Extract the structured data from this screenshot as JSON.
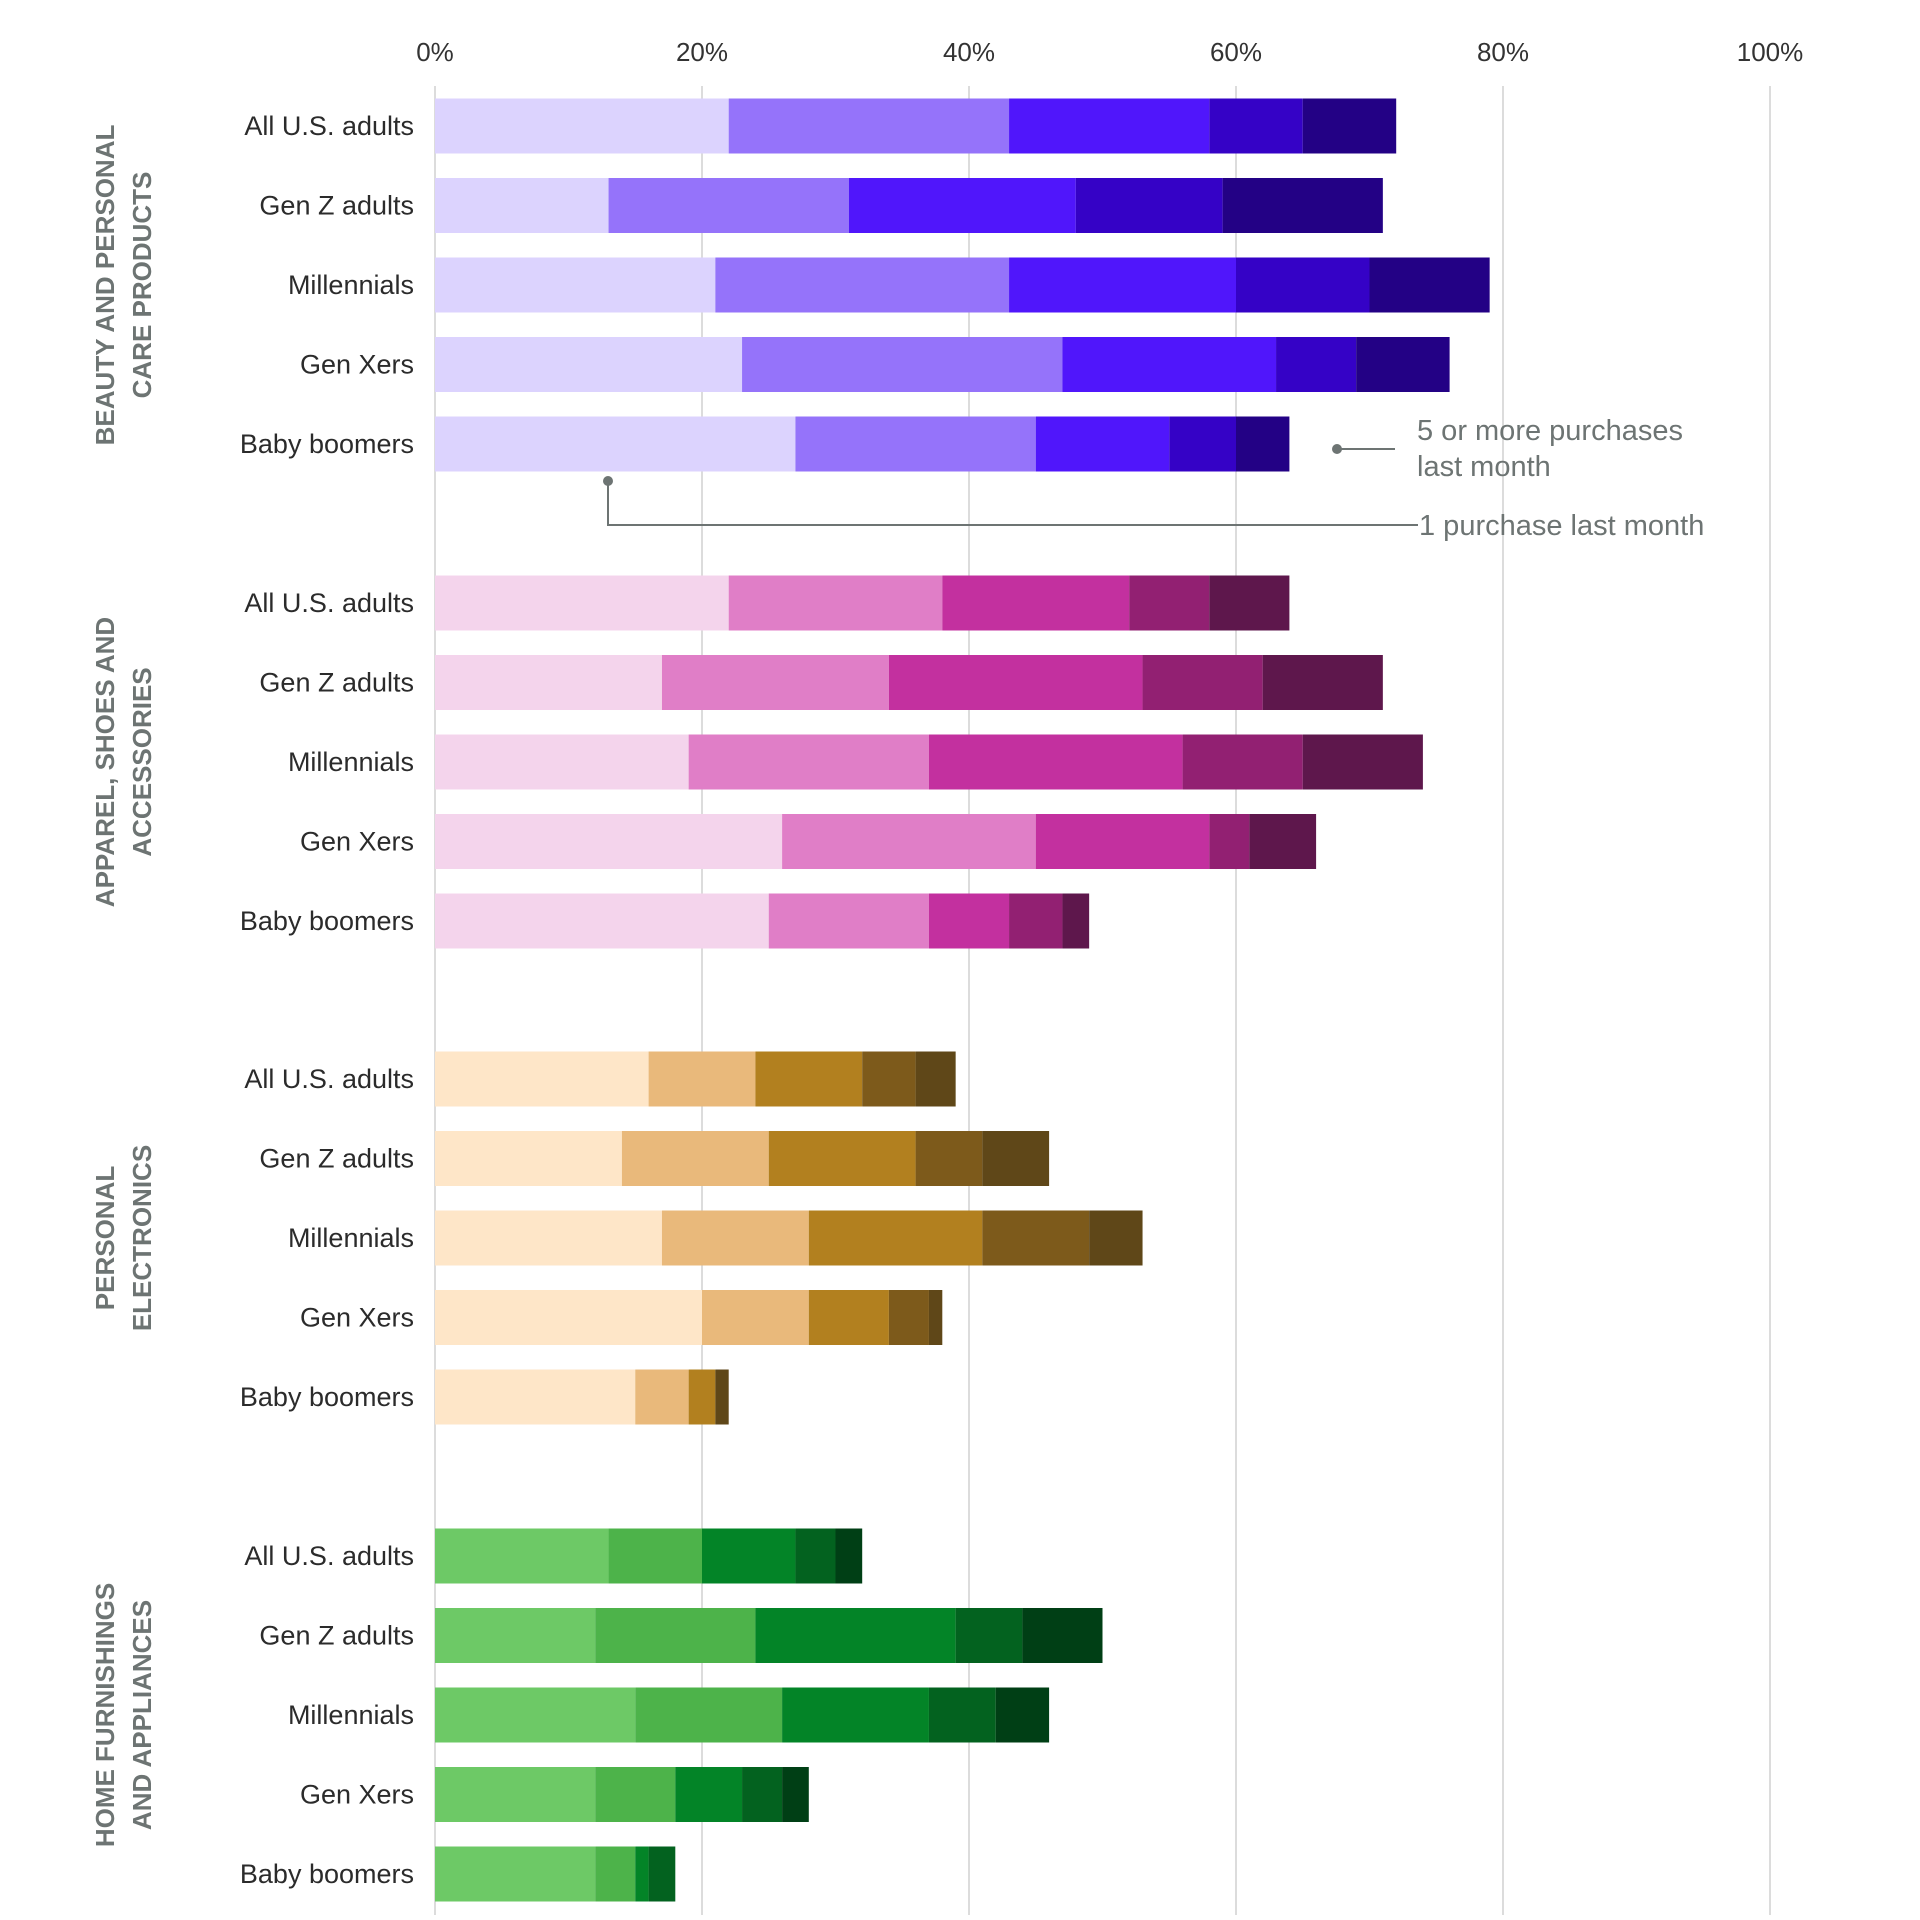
{
  "chart_data": {
    "type": "bar",
    "orientation": "horizontal",
    "stacked": true,
    "title": "",
    "xlabel": "",
    "ylabel": "",
    "xlim": [
      0,
      100
    ],
    "x_ticks": [
      "0%",
      "20%",
      "40%",
      "60%",
      "80%",
      "100%"
    ],
    "x_tick_values": [
      0,
      20,
      40,
      60,
      80,
      100
    ],
    "grid": true,
    "value_unit": "percent of respondents",
    "segment_order_note": "Segments run from 1 purchase last month (lightest) to 5 or more purchases last month (darkest)",
    "annotations": [
      {
        "text": "5 or more purchases last month",
        "lines": [
          "5 or more purchases",
          "last month"
        ],
        "points_to": "darkest segment"
      },
      {
        "text": "1 purchase last month",
        "lines": [
          "1 purchase last month"
        ],
        "points_to": "lightest segment"
      }
    ],
    "groups": [
      {
        "name": "Beauty and personal care products",
        "label_lines": [
          "BEAUTY AND PERSONAL",
          "CARE PRODUCTS"
        ],
        "colors": [
          "#dcd3fe",
          "#9573fa",
          "#5016fb",
          "#3502c6",
          "#230185"
        ],
        "categories": [
          "All U.S. adults",
          "Gen Z adults",
          "Millennials",
          "Gen Xers",
          "Baby boomers"
        ],
        "segments": [
          [
            22,
            21,
            15,
            7,
            7
          ],
          [
            13,
            18,
            17,
            11,
            12
          ],
          [
            21,
            22,
            17,
            10,
            9
          ],
          [
            23,
            24,
            16,
            6,
            7
          ],
          [
            27,
            18,
            10,
            5,
            4
          ]
        ]
      },
      {
        "name": "Apparel, shoes and accessories",
        "label_lines": [
          "APPAREL, SHOES AND",
          "ACCESSORIES"
        ],
        "colors": [
          "#f4d4ec",
          "#e07ec7",
          "#c3309f",
          "#922072",
          "#5e174c"
        ],
        "categories": [
          "All U.S. adults",
          "Gen Z adults",
          "Millennials",
          "Gen Xers",
          "Baby boomers"
        ],
        "segments": [
          [
            22,
            16,
            14,
            6,
            6
          ],
          [
            17,
            17,
            19,
            9,
            9
          ],
          [
            19,
            18,
            19,
            9,
            9
          ],
          [
            26,
            19,
            13,
            3,
            5
          ],
          [
            25,
            12,
            6,
            4,
            2
          ]
        ]
      },
      {
        "name": "Personal electronics",
        "label_lines": [
          "PERSONAL",
          "ELECTRONICS"
        ],
        "colors": [
          "#fee6c8",
          "#e9b97b",
          "#b2801f",
          "#7d5a1b",
          "#5f4718"
        ],
        "categories": [
          "All U.S. adults",
          "Gen Z adults",
          "Millennials",
          "Gen Xers",
          "Baby boomers"
        ],
        "segments": [
          [
            16,
            8,
            8,
            4,
            3
          ],
          [
            14,
            11,
            11,
            5,
            5
          ],
          [
            17,
            11,
            13,
            8,
            4
          ],
          [
            20,
            8,
            6,
            3,
            1
          ],
          [
            15,
            4,
            2,
            0,
            1
          ]
        ]
      },
      {
        "name": "Home furnishings and appliances",
        "label_lines": [
          "HOME FURNISHINGS",
          "AND APPLIANCES"
        ],
        "colors": [
          "#6dc966",
          "#4db34a",
          "#038427",
          "#03621f",
          "#003f15"
        ],
        "categories": [
          "All U.S. adults",
          "Gen Z adults",
          "Millennials",
          "Gen Xers",
          "Baby boomers"
        ],
        "segments": [
          [
            13,
            7,
            7,
            3,
            2
          ],
          [
            12,
            12,
            15,
            5,
            6
          ],
          [
            15,
            11,
            11,
            5,
            4
          ],
          [
            12,
            6,
            5,
            3,
            2
          ],
          [
            12,
            3,
            1,
            2,
            0
          ]
        ]
      }
    ]
  }
}
